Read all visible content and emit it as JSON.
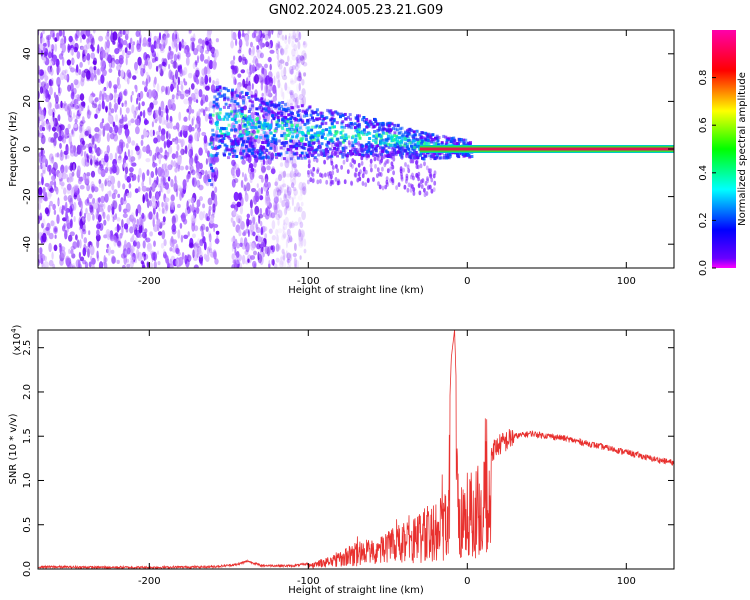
{
  "title": "GN02.2024.005.23.21.G09",
  "colors": {
    "snr_line": "#e8302e",
    "carrier_line": "#e0194f",
    "scatter_purple": "#7a1aff"
  },
  "chart_data": [
    {
      "type": "heatmap",
      "xlabel": "Height of straight line (km)",
      "ylabel": "Frequency (Hz)",
      "xlim": [
        -270,
        130
      ],
      "ylim": [
        -50,
        50
      ],
      "x_ticks": [
        -200,
        -100,
        0,
        100
      ],
      "y_ticks": [
        -40,
        -20,
        0,
        20,
        40
      ],
      "grid": false,
      "colorbar": {
        "label": "Normalized spectral amplitude",
        "range": [
          0,
          1
        ],
        "ticks": [
          0.0,
          0.2,
          0.4,
          0.6,
          0.8
        ],
        "tick_labels": [
          "0.0",
          "0.2",
          "0.4",
          "0.6",
          "0.8"
        ],
        "colormap": "rainbow"
      },
      "features": {
        "noise_band_x": [
          -270,
          -110
        ],
        "noise_gap_x": [
          -157,
          -148
        ],
        "doppler_track": [
          {
            "x": -160,
            "y": 12
          },
          {
            "x": -140,
            "y": 10
          },
          {
            "x": -120,
            "y": 8
          },
          {
            "x": -100,
            "y": 7
          },
          {
            "x": -80,
            "y": 6
          },
          {
            "x": -60,
            "y": 5
          },
          {
            "x": -40,
            "y": 3
          },
          {
            "x": -25,
            "y": 1
          },
          {
            "x": -10,
            "y": 0.5
          },
          {
            "x": 0,
            "y": 0
          }
        ],
        "carrier_x": [
          -30,
          130
        ],
        "carrier_y": 0
      }
    },
    {
      "type": "line",
      "xlabel": "Height of straight line (km)",
      "ylabel": "SNR (10 * v/v)",
      "y_multiplier": "(x10",
      "y_multiplier_exp": "4",
      "y_multiplier_close": ")",
      "xlim": [
        -270,
        130
      ],
      "ylim": [
        0,
        27000
      ],
      "x_ticks": [
        -200,
        -100,
        0,
        100
      ],
      "y_ticks": [
        0,
        5000,
        10000,
        15000,
        20000,
        25000
      ],
      "y_tick_labels": [
        "0.0",
        "0.5",
        "1.0",
        "1.5",
        "2.0",
        "2.5"
      ],
      "grid": false,
      "series": [
        {
          "values": [
            [
              -270,
              250
            ],
            [
              -240,
              200
            ],
            [
              -200,
              180
            ],
            [
              -160,
              250
            ],
            [
              -145,
              500
            ],
            [
              -138,
              900
            ],
            [
              -130,
              400
            ],
            [
              -110,
              350
            ],
            [
              -100,
              600
            ],
            [
              -90,
              1200
            ],
            [
              -80,
              2200
            ],
            [
              -70,
              3000
            ],
            [
              -60,
              3800
            ],
            [
              -50,
              4500
            ],
            [
              -40,
              5200
            ],
            [
              -30,
              6500
            ],
            [
              -20,
              8000
            ],
            [
              -13,
              9000
            ],
            [
              -10,
              24000
            ],
            [
              -8,
              27000
            ],
            [
              -5,
              9500
            ],
            [
              0,
              11000
            ],
            [
              10,
              12500
            ],
            [
              20,
              14000
            ],
            [
              30,
              15000
            ],
            [
              40,
              15300
            ],
            [
              60,
              14800
            ],
            [
              80,
              14000
            ],
            [
              100,
              13200
            ],
            [
              115,
              12500
            ],
            [
              130,
              12000
            ]
          ]
        }
      ]
    }
  ]
}
